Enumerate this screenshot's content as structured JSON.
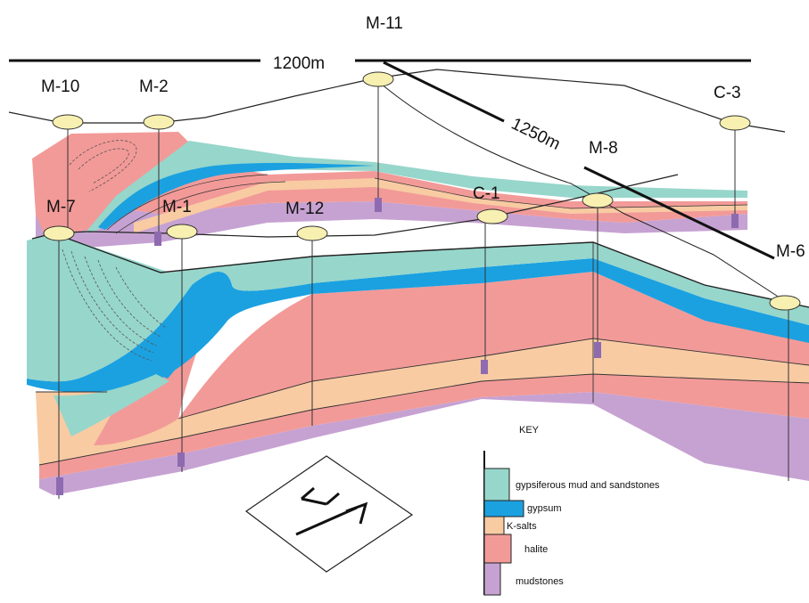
{
  "scale_bars": [
    {
      "id": "scale-1200",
      "label": "1200m"
    },
    {
      "id": "scale-1250",
      "label": "1250m"
    }
  ],
  "wells": [
    {
      "id": "M-11",
      "label": "M-11"
    },
    {
      "id": "M-10",
      "label": "M-10"
    },
    {
      "id": "M-2",
      "label": "M-2"
    },
    {
      "id": "C-3",
      "label": "C-3"
    },
    {
      "id": "M-8",
      "label": "M-8"
    },
    {
      "id": "M-7",
      "label": "M-7"
    },
    {
      "id": "M-1",
      "label": "M-1"
    },
    {
      "id": "M-12",
      "label": "M-12"
    },
    {
      "id": "C-1",
      "label": "C-1"
    },
    {
      "id": "M-6",
      "label": "M-6"
    }
  ],
  "key": {
    "title": "KEY",
    "items": [
      {
        "id": "mud",
        "label": "gypsiferous mud and sandstones",
        "color": "#97d6cb"
      },
      {
        "id": "gypsum",
        "label": "gypsum",
        "color": "#1ba1e0"
      },
      {
        "id": "ksalts",
        "label": "K-salts",
        "color": "#f8cba3"
      },
      {
        "id": "halite",
        "label": "halite",
        "color": "#f29a98"
      },
      {
        "id": "mudstones",
        "label": "mudstones",
        "color": "#c6a2d2"
      }
    ]
  },
  "colors": {
    "mud": "#97d6cb",
    "gypsum": "#1ba1e0",
    "ksalts": "#f8cba3",
    "halite": "#f29a98",
    "mudstones": "#c6a2d2",
    "line": "#222222",
    "well_marker": "#f7f0b0"
  },
  "north_arrow": {
    "letters": "N",
    "icon": "north-arrow-icon"
  }
}
